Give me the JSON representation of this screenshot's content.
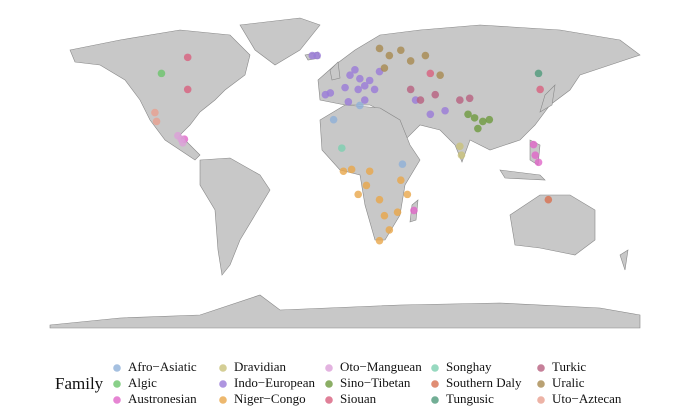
{
  "map": {
    "legend": {
      "title": "Family"
    },
    "families": [
      {
        "name": "Afro−Asiatic",
        "color": "#8fb0d8",
        "points": [
          [
            9,
            35
          ],
          [
            35,
            2
          ],
          [
            -7,
            27
          ]
        ]
      },
      {
        "name": "Algic",
        "color": "#6cc46c",
        "points": [
          [
            -112,
            53
          ]
        ]
      },
      {
        "name": "Austronesian",
        "color": "#e066c8",
        "points": [
          [
            -98,
            16
          ],
          [
            115,
            13
          ],
          [
            116,
            7
          ],
          [
            118,
            3
          ],
          [
            42,
            -24
          ]
        ]
      },
      {
        "name": "Dravidian",
        "color": "#c9c27a",
        "points": [
          [
            70,
            12
          ],
          [
            71,
            7
          ]
        ]
      },
      {
        "name": "Indo−European",
        "color": "#9a7ad8",
        "points": [
          [
            -9,
            42
          ],
          [
            -12,
            41
          ],
          [
            3,
            52
          ],
          [
            6,
            55
          ],
          [
            9,
            50
          ],
          [
            12,
            46
          ],
          [
            15,
            49
          ],
          [
            18,
            44
          ],
          [
            0,
            45
          ],
          [
            21,
            54
          ],
          [
            8,
            44
          ],
          [
            2,
            37
          ],
          [
            12,
            38
          ],
          [
            52,
            30
          ],
          [
            61,
            32
          ],
          [
            43,
            38
          ],
          [
            -20,
            63
          ],
          [
            -17,
            63
          ]
        ]
      },
      {
        "name": "Niger−Congo",
        "color": "#e8a64a",
        "points": [
          [
            -1,
            -2
          ],
          [
            4,
            -1
          ],
          [
            15,
            -2
          ],
          [
            8,
            -15
          ],
          [
            21,
            -18
          ],
          [
            24,
            -27
          ],
          [
            27,
            -35
          ],
          [
            21,
            -41
          ],
          [
            34,
            -7
          ],
          [
            38,
            -15
          ],
          [
            13,
            -10
          ],
          [
            32,
            -25
          ]
        ]
      },
      {
        "name": "Oto−Manguean",
        "color": "#dca0d8",
        "points": [
          [
            -102,
            18
          ],
          [
            -100,
            16
          ],
          [
            -99,
            14
          ]
        ]
      },
      {
        "name": "Sino−Tibetan",
        "color": "#6e9a3e",
        "points": [
          [
            75,
            30
          ],
          [
            79,
            28
          ],
          [
            84,
            26
          ],
          [
            88,
            27
          ],
          [
            81,
            22
          ]
        ]
      },
      {
        "name": "Siouan",
        "color": "#d8607e",
        "points": [
          [
            -96,
            44
          ],
          [
            -96,
            62
          ],
          [
            52,
            53
          ],
          [
            119,
            44
          ]
        ]
      },
      {
        "name": "Songhay",
        "color": "#7dcfb0",
        "points": [
          [
            -2,
            11
          ]
        ]
      },
      {
        "name": "Southern Daly",
        "color": "#d87050",
        "points": [
          [
            124,
            -18
          ]
        ]
      },
      {
        "name": "Tungusic",
        "color": "#4f9a7a",
        "points": [
          [
            118,
            53
          ]
        ]
      },
      {
        "name": "Turkic",
        "color": "#b86080",
        "points": [
          [
            46,
            38
          ],
          [
            55,
            41
          ],
          [
            40,
            44
          ],
          [
            70,
            38
          ],
          [
            76,
            39
          ]
        ]
      },
      {
        "name": "Uralic",
        "color": "#a88a50",
        "points": [
          [
            21,
            67
          ],
          [
            27,
            63
          ],
          [
            40,
            60
          ],
          [
            49,
            63
          ],
          [
            58,
            52
          ],
          [
            34,
            66
          ],
          [
            24,
            56
          ]
        ]
      },
      {
        "name": "Uto−Aztecan",
        "color": "#e8a090",
        "points": [
          [
            -116,
            31
          ],
          [
            -115,
            26
          ]
        ]
      }
    ]
  }
}
